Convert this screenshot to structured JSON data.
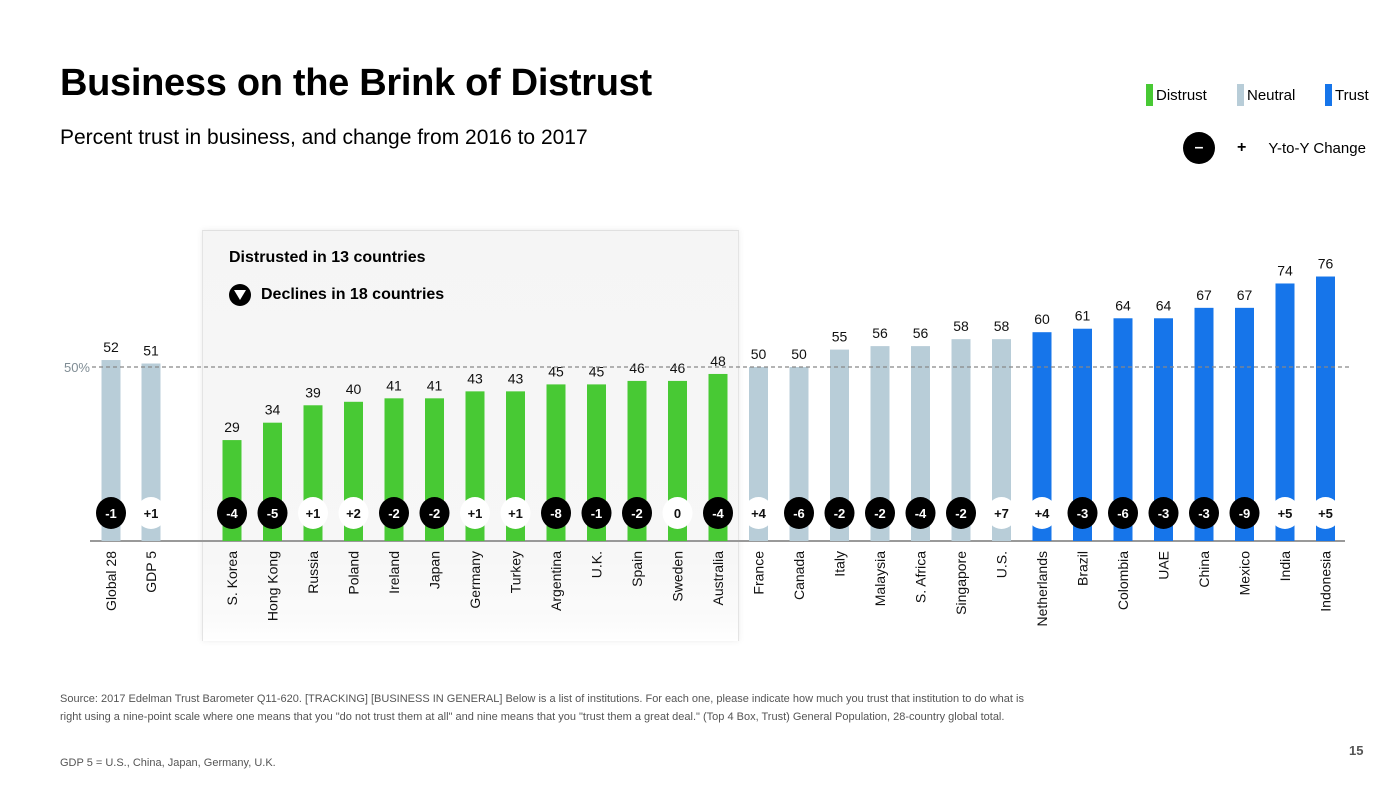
{
  "slide": {
    "title": "Business on the Brink of Distrust",
    "subtitle": "Percent trust in business, and change from 2016 to 2017",
    "page_number": "15"
  },
  "legend": {
    "items": [
      {
        "label": "Distrust",
        "color": "#48c934"
      },
      {
        "label": "Neutral",
        "color": "#b8cdd8"
      },
      {
        "label": "Trust",
        "color": "#1675ea"
      }
    ],
    "change_negative_symbol": "–",
    "change_positive_symbol": "+",
    "change_label": "Y-to-Y Change"
  },
  "callout": {
    "line1": "Distrusted in 13 countries",
    "line2": "Declines in 18 countries"
  },
  "notes": {
    "source": "Source: 2017 Edelman Trust Barometer Q11-620. [TRACKING] [BUSINESS IN GENERAL] Below is a list of institutions. For each one, please indicate how much you trust that institution to do what is right using a nine-point scale where one means that you \"do not trust them at all\" and nine means that you \"trust them a great deal.\" (Top 4 Box, Trust) General Population, 28-country global total.",
    "gdp5": "GDP 5 = U.S., China, Japan, Germany, U.K."
  },
  "chart_data": {
    "type": "bar",
    "title": "Business on the Brink of Distrust",
    "subtitle": "Percent trust in business, and change from 2016 to 2017",
    "xlabel": "",
    "ylabel": "Percent trust",
    "ylim": [
      0,
      80
    ],
    "reference_line": {
      "value": 50,
      "label": "50%",
      "style": "dashed"
    },
    "grid": false,
    "legend_position": "top-right",
    "categories": [
      "Global 28",
      "GDP 5",
      "S. Korea",
      "Hong Kong",
      "Russia",
      "Poland",
      "Ireland",
      "Japan",
      "Germany",
      "Turkey",
      "Argentina",
      "U.K.",
      "Spain",
      "Sweden",
      "Australia",
      "France",
      "Canada",
      "Italy",
      "Malaysia",
      "S. Africa",
      "Singapore",
      "U.S.",
      "Netherlands",
      "Brazil",
      "Colombia",
      "UAE",
      "China",
      "Mexico",
      "India",
      "Indonesia"
    ],
    "values": [
      52,
      51,
      29,
      34,
      39,
      40,
      41,
      41,
      43,
      43,
      45,
      45,
      46,
      46,
      48,
      50,
      50,
      55,
      56,
      56,
      58,
      58,
      60,
      61,
      64,
      64,
      67,
      67,
      74,
      76
    ],
    "classification": [
      "neutral",
      "neutral",
      "distrust",
      "distrust",
      "distrust",
      "distrust",
      "distrust",
      "distrust",
      "distrust",
      "distrust",
      "distrust",
      "distrust",
      "distrust",
      "distrust",
      "distrust",
      "neutral",
      "neutral",
      "neutral",
      "neutral",
      "neutral",
      "neutral",
      "neutral",
      "trust",
      "trust",
      "trust",
      "trust",
      "trust",
      "trust",
      "trust",
      "trust"
    ],
    "yoy_change": [
      "-1",
      "+1",
      "-4",
      "-5",
      "+1",
      "+2",
      "-2",
      "-2",
      "+1",
      "+1",
      "-8",
      "-1",
      "-2",
      "0",
      "-4",
      "+4",
      "-6",
      "-2",
      "-2",
      "-4",
      "-2",
      "+7",
      "+4",
      "-3",
      "-6",
      "-3",
      "-3",
      "-9",
      "+5",
      "+5"
    ],
    "colors": {
      "distrust": "#48c934",
      "neutral": "#b8cdd8",
      "trust": "#1675ea"
    }
  }
}
